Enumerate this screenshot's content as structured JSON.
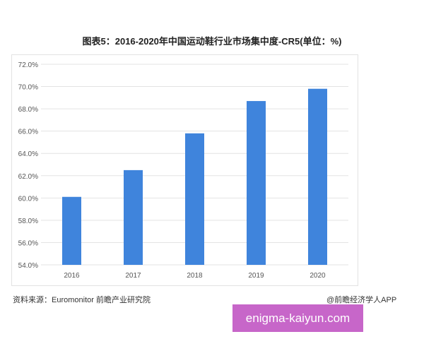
{
  "chart_data": {
    "type": "bar",
    "title": "图表5：2016-2020年中国运动鞋行业市场集中度-CR5(单位：%)",
    "categories": [
      "2016",
      "2017",
      "2018",
      "2019",
      "2020"
    ],
    "values": [
      60.1,
      62.5,
      65.8,
      68.7,
      69.8
    ],
    "ylim": [
      54,
      72
    ],
    "yticks": [
      "54.0%",
      "56.0%",
      "58.0%",
      "60.0%",
      "62.0%",
      "64.0%",
      "66.0%",
      "68.0%",
      "70.0%",
      "72.0%"
    ],
    "xlabel": "",
    "ylabel": "",
    "grid": true,
    "bar_color": "#3f84dc"
  },
  "footer": {
    "source": "资料来源：Euromonitor 前瞻产业研究院",
    "credit": "@前瞻经济学人APP"
  },
  "watermark": "enigma-kaiyun.com"
}
